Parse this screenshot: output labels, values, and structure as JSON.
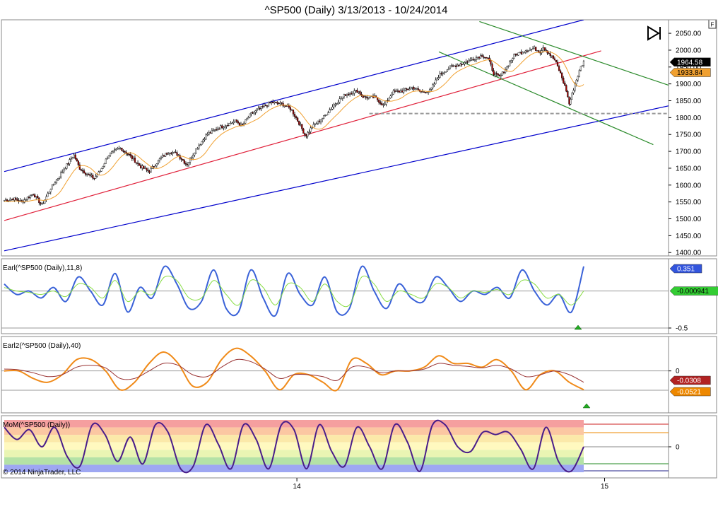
{
  "title": "^SP500 (Daily)  3/13/2013 - 10/24/2014",
  "copyright": "© 2014 NinjaTrader, LLC",
  "corner_button": "F",
  "chart_data": [
    {
      "type": "candlestick",
      "name": "price",
      "ylim": [
        1390,
        2090
      ],
      "yticks": [
        {
          "v": 2050,
          "t": "2050.00"
        },
        {
          "v": 2000,
          "t": "2000.00"
        },
        {
          "v": 1950,
          "t": "1950.00"
        },
        {
          "v": 1900,
          "t": "1900.00"
        },
        {
          "v": 1850,
          "t": "1850.00"
        },
        {
          "v": 1800,
          "t": "1800.00"
        },
        {
          "v": 1750,
          "t": "1750.00"
        },
        {
          "v": 1700,
          "t": "1700.00"
        },
        {
          "v": 1650,
          "t": "1650.00"
        },
        {
          "v": 1600,
          "t": "1600.00"
        },
        {
          "v": 1550,
          "t": "1550.00"
        },
        {
          "v": 1500,
          "t": "1500.00"
        },
        {
          "v": 1450,
          "t": "1450.00"
        },
        {
          "v": 1400,
          "t": "1400.00"
        }
      ],
      "last_price": "1964.58",
      "ma_value": "1933.84",
      "close_path": [
        [
          0,
          1555
        ],
        [
          0.015,
          1560
        ],
        [
          0.03,
          1550
        ],
        [
          0.05,
          1575
        ],
        [
          0.065,
          1540
        ],
        [
          0.08,
          1590
        ],
        [
          0.1,
          1640
        ],
        [
          0.12,
          1690
        ],
        [
          0.13,
          1650
        ],
        [
          0.145,
          1630
        ],
        [
          0.155,
          1620
        ],
        [
          0.165,
          1640
        ],
        [
          0.18,
          1690
        ],
        [
          0.2,
          1710
        ],
        [
          0.215,
          1690
        ],
        [
          0.235,
          1655
        ],
        [
          0.25,
          1640
        ],
        [
          0.27,
          1680
        ],
        [
          0.285,
          1700
        ],
        [
          0.3,
          1690
        ],
        [
          0.315,
          1660
        ],
        [
          0.33,
          1705
        ],
        [
          0.35,
          1750
        ],
        [
          0.37,
          1770
        ],
        [
          0.385,
          1780
        ],
        [
          0.4,
          1790
        ],
        [
          0.41,
          1775
        ],
        [
          0.425,
          1810
        ],
        [
          0.445,
          1830
        ],
        [
          0.46,
          1845
        ],
        [
          0.48,
          1840
        ],
        [
          0.495,
          1825
        ],
        [
          0.51,
          1780
        ],
        [
          0.52,
          1745
        ],
        [
          0.53,
          1770
        ],
        [
          0.55,
          1800
        ],
        [
          0.57,
          1840
        ],
        [
          0.59,
          1870
        ],
        [
          0.61,
          1880
        ],
        [
          0.62,
          1860
        ],
        [
          0.64,
          1860
        ],
        [
          0.655,
          1835
        ],
        [
          0.67,
          1875
        ],
        [
          0.69,
          1880
        ],
        [
          0.705,
          1890
        ],
        [
          0.72,
          1875
        ],
        [
          0.735,
          1880
        ],
        [
          0.75,
          1925
        ],
        [
          0.77,
          1950
        ],
        [
          0.79,
          1960
        ],
        [
          0.81,
          1975
        ],
        [
          0.825,
          1985
        ],
        [
          0.835,
          1975
        ],
        [
          0.845,
          1930
        ],
        [
          0.855,
          1920
        ],
        [
          0.865,
          1945
        ],
        [
          0.88,
          1985
        ],
        [
          0.9,
          2000
        ],
        [
          0.915,
          2005
        ],
        [
          0.925,
          1995
        ],
        [
          0.93,
          2010
        ],
        [
          0.94,
          1990
        ],
        [
          0.95,
          1970
        ],
        [
          0.96,
          1930
        ],
        [
          0.97,
          1880
        ],
        [
          0.975,
          1840
        ],
        [
          0.985,
          1900
        ],
        [
          0.995,
          1950
        ],
        [
          1.0,
          1965
        ]
      ],
      "trend_lines": [
        {
          "color": "#0000cc",
          "from": [
            0,
            1640
          ],
          "to": [
            1.0,
            2090
          ]
        },
        {
          "color": "#0000cc",
          "from": [
            0,
            1405
          ],
          "to": [
            1.2,
            1855
          ]
        },
        {
          "color": "#e0203a",
          "from": [
            0,
            1495
          ],
          "to": [
            1.03,
            1998
          ]
        },
        {
          "color": "#2a8a2a",
          "from": [
            0.82,
            2085
          ],
          "to": [
            1.2,
            1865
          ]
        },
        {
          "color": "#2a8a2a",
          "from": [
            0.75,
            1995
          ],
          "to": [
            1.12,
            1720
          ]
        }
      ],
      "support_level": 1812
    },
    {
      "type": "line",
      "name": "Earl(^SP500 (Daily),11,8)",
      "ylim": [
        -0.55,
        0.4
      ],
      "yticks": [
        {
          "v": -0.5,
          "t": "-0.5"
        }
      ],
      "zero_line": 0,
      "badges": [
        {
          "v": 0.351,
          "t": "0.351",
          "color": "#3355dd"
        },
        {
          "v": -0.000941,
          "t": "-0.000941",
          "color": "#33cc33"
        }
      ],
      "series": [
        {
          "name": "fast",
          "color": "#3a62d8",
          "values": [
            0.1,
            -0.05,
            0.0,
            -0.1,
            0.05,
            -0.15,
            0.2,
            0.0,
            -0.2,
            0.25,
            -0.3,
            0.05,
            -0.1,
            0.35,
            0.1,
            -0.25,
            -0.15,
            0.3,
            -0.25,
            -0.3,
            0.3,
            -0.1,
            -0.35,
            0.25,
            -0.05,
            -0.2,
            0.2,
            -0.3,
            -0.25,
            0.35,
            0.0,
            -0.25,
            0.1,
            -0.1,
            -0.15,
            0.2,
            0.05,
            -0.15,
            0.0,
            -0.05,
            0.05,
            -0.1,
            0.3,
            0.0,
            -0.2,
            -0.05,
            -0.3,
            0.35
          ]
        },
        {
          "name": "signal",
          "color": "#88dd44",
          "values": [
            0.05,
            0.0,
            -0.02,
            -0.05,
            0.0,
            -0.08,
            0.1,
            0.05,
            -0.1,
            0.15,
            -0.15,
            0.0,
            -0.05,
            0.2,
            0.15,
            -0.1,
            -0.1,
            0.15,
            -0.05,
            -0.2,
            0.15,
            0.05,
            -0.2,
            0.1,
            0.05,
            -0.15,
            0.1,
            -0.15,
            -0.2,
            0.2,
            0.1,
            -0.15,
            0.0,
            -0.05,
            -0.1,
            0.1,
            0.05,
            -0.1,
            0.0,
            -0.02,
            0.02,
            -0.05,
            0.15,
            0.1,
            -0.1,
            -0.05,
            -0.2,
            0.0
          ]
        }
      ]
    },
    {
      "type": "line",
      "name": "Earl2(^SP500 (Daily),40)",
      "ylim": [
        -0.1,
        0.08
      ],
      "yticks": [
        {
          "v": 0,
          "t": "0"
        }
      ],
      "zero_line": 0,
      "badges": [
        {
          "v": -0.0308,
          "t": "-0.0308",
          "color": "#b22222"
        },
        {
          "v": -0.0521,
          "t": "-0.0521",
          "color": "#ee8800"
        }
      ],
      "series": [
        {
          "name": "earl2",
          "color": "#f08a18",
          "values": [
            0.0,
            0.0,
            -0.02,
            -0.03,
            -0.01,
            0.03,
            0.03,
            0.0,
            -0.05,
            -0.03,
            0.02,
            0.05,
            0.02,
            -0.04,
            -0.03,
            0.03,
            0.06,
            0.04,
            0.0,
            -0.05,
            -0.01,
            -0.01,
            -0.03,
            -0.05,
            0.03,
            0.02,
            -0.01,
            0.0,
            0.0,
            0.01,
            0.04,
            0.02,
            0.02,
            0.01,
            0.03,
            0.0,
            -0.05,
            -0.01,
            0.0,
            -0.03,
            -0.05
          ]
        },
        {
          "name": "avg",
          "color": "#993333",
          "values": [
            0.005,
            0.003,
            -0.005,
            -0.015,
            -0.01,
            0.01,
            0.015,
            0.008,
            -0.02,
            -0.02,
            0.0,
            0.02,
            0.015,
            -0.01,
            -0.015,
            0.01,
            0.03,
            0.025,
            0.005,
            -0.02,
            -0.01,
            -0.01,
            -0.015,
            -0.025,
            0.01,
            0.01,
            -0.005,
            0.0,
            0.0,
            0.005,
            0.02,
            0.015,
            0.012,
            0.008,
            0.015,
            0.005,
            -0.015,
            -0.01,
            0.0,
            -0.01,
            -0.03
          ]
        }
      ]
    },
    {
      "type": "line",
      "name": "MoM(^SP500 (Daily))",
      "ylim": [
        -1.1,
        1.1
      ],
      "yticks": [
        {
          "v": 0,
          "t": "0"
        }
      ],
      "bands": [
        "#f59f9f",
        "#fbc7a2",
        "#fbe9a9",
        "#fff9bf",
        "#e9f5b3",
        "#b4e2a6",
        "#9ea7f2"
      ],
      "series": [
        {
          "name": "mom",
          "color": "#4a1e8a",
          "values": [
            0.8,
            0.3,
            0.7,
            0.0,
            0.8,
            -0.4,
            -0.8,
            0.9,
            0.5,
            -0.6,
            0.4,
            -0.7,
            0.9,
            0.6,
            -0.9,
            -0.8,
            0.9,
            0.1,
            -0.9,
            0.9,
            0.3,
            -0.9,
            0.9,
            0.7,
            -0.9,
            0.9,
            -0.2,
            -0.8,
            0.8,
            0.0,
            -0.9,
            0.9,
            0.2,
            -1.0,
            0.9,
            0.9,
            0.0,
            -0.2,
            0.6,
            0.5,
            0.6,
            -0.1,
            -0.9,
            0.8,
            -0.6,
            -1.0,
            0.0
          ]
        }
      ]
    }
  ],
  "x_axis": [
    {
      "label": "14",
      "pos": 0.505
    },
    {
      "label": "15",
      "pos": 1.036
    }
  ]
}
